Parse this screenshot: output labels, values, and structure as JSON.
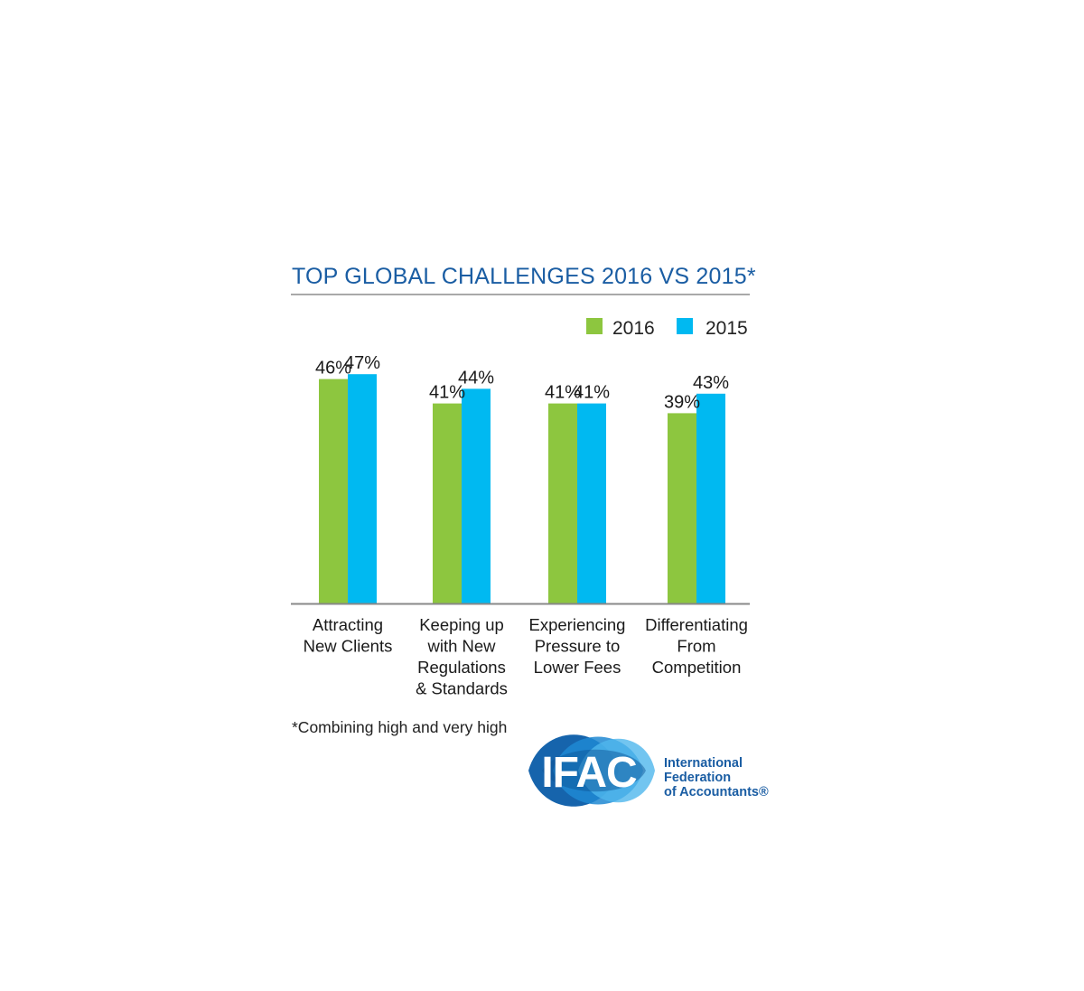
{
  "chart_data": {
    "type": "bar",
    "title": "TOP GLOBAL CHALLENGES 2016 VS 2015*",
    "categories": [
      [
        "Attracting",
        "New Clients"
      ],
      [
        "Keeping up",
        "with New",
        "Regulations",
        "& Standards"
      ],
      [
        "Experiencing",
        "Pressure to",
        "Lower Fees"
      ],
      [
        "Differentiating",
        "From",
        "Competition"
      ]
    ],
    "series": [
      {
        "name": "2016",
        "color": "#8dc63f",
        "values": [
          46,
          41,
          41,
          39
        ]
      },
      {
        "name": "2015",
        "color": "#00b9f1",
        "values": [
          47,
          44,
          41,
          43
        ]
      }
    ],
    "value_suffix": "%",
    "ylim": [
      0,
      48
    ],
    "grid": false,
    "legend_position": "top-right",
    "footnote": "*Combining high and very high"
  },
  "logo": {
    "acronym": "IFAC",
    "org_lines": [
      "International",
      "Federation",
      "of Accountants®"
    ],
    "colors": {
      "dark": "#0a5ca8",
      "mid": "#1e88d2",
      "light": "#4fb6ec"
    }
  },
  "colors": {
    "title": "#1a5da3",
    "rule": "#a9a9a9",
    "axis": "#888888"
  }
}
